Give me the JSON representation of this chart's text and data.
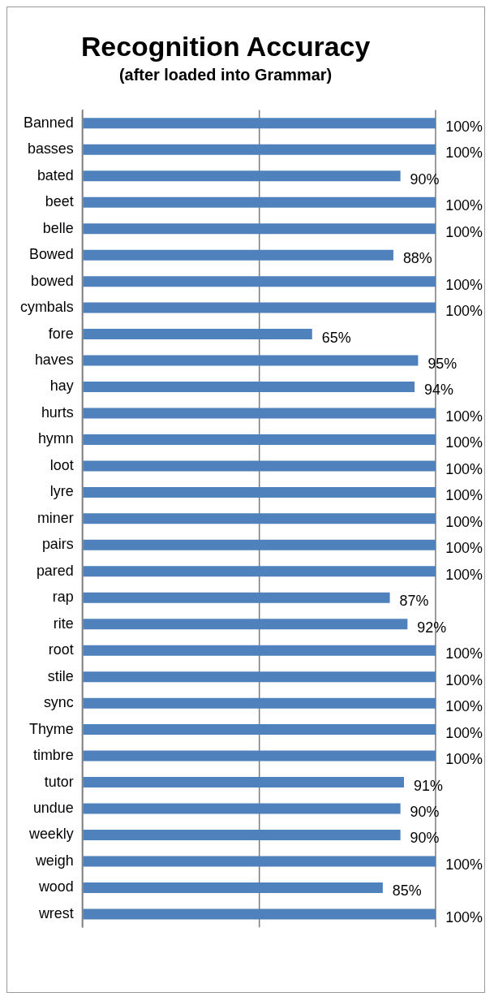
{
  "chart_data": {
    "type": "bar",
    "orientation": "horizontal",
    "title": "Recognition Accuracy",
    "subtitle": "(after loaded into Grammar)",
    "categories": [
      "Banned",
      "basses",
      "bated",
      "beet",
      "belle",
      "Bowed",
      "bowed",
      "cymbals",
      "fore",
      "haves",
      "hay",
      "hurts",
      "hymn",
      "loot",
      "lyre",
      "miner",
      "pairs",
      "pared",
      "rap",
      "rite",
      "root",
      "stile",
      "sync",
      "Thyme",
      "timbre",
      "tutor",
      "undue",
      "weekly",
      "weigh",
      "wood",
      "wrest"
    ],
    "values": [
      100,
      100,
      90,
      100,
      100,
      88,
      100,
      100,
      65,
      95,
      94,
      100,
      100,
      100,
      100,
      100,
      100,
      100,
      87,
      92,
      100,
      100,
      100,
      100,
      100,
      91,
      90,
      90,
      100,
      85,
      100
    ],
    "value_labels": [
      "100%",
      "100%",
      "90%",
      "100%",
      "100%",
      "88%",
      "100%",
      "100%",
      "65%",
      "95%",
      "94%",
      "100%",
      "100%",
      "100%",
      "100%",
      "100%",
      "100%",
      "100%",
      "87%",
      "92%",
      "100%",
      "100%",
      "100%",
      "100%",
      "100%",
      "91%",
      "90%",
      "90%",
      "100%",
      "85%",
      "100%"
    ],
    "color": "#4f81bd",
    "xlim": [
      0,
      100
    ],
    "xticks": [
      {
        "value": 0,
        "label": null
      },
      {
        "value": 50,
        "label": null
      },
      {
        "value": 100,
        "label": null
      }
    ],
    "grid": "x",
    "tick_labels": "y",
    "legend": false
  }
}
